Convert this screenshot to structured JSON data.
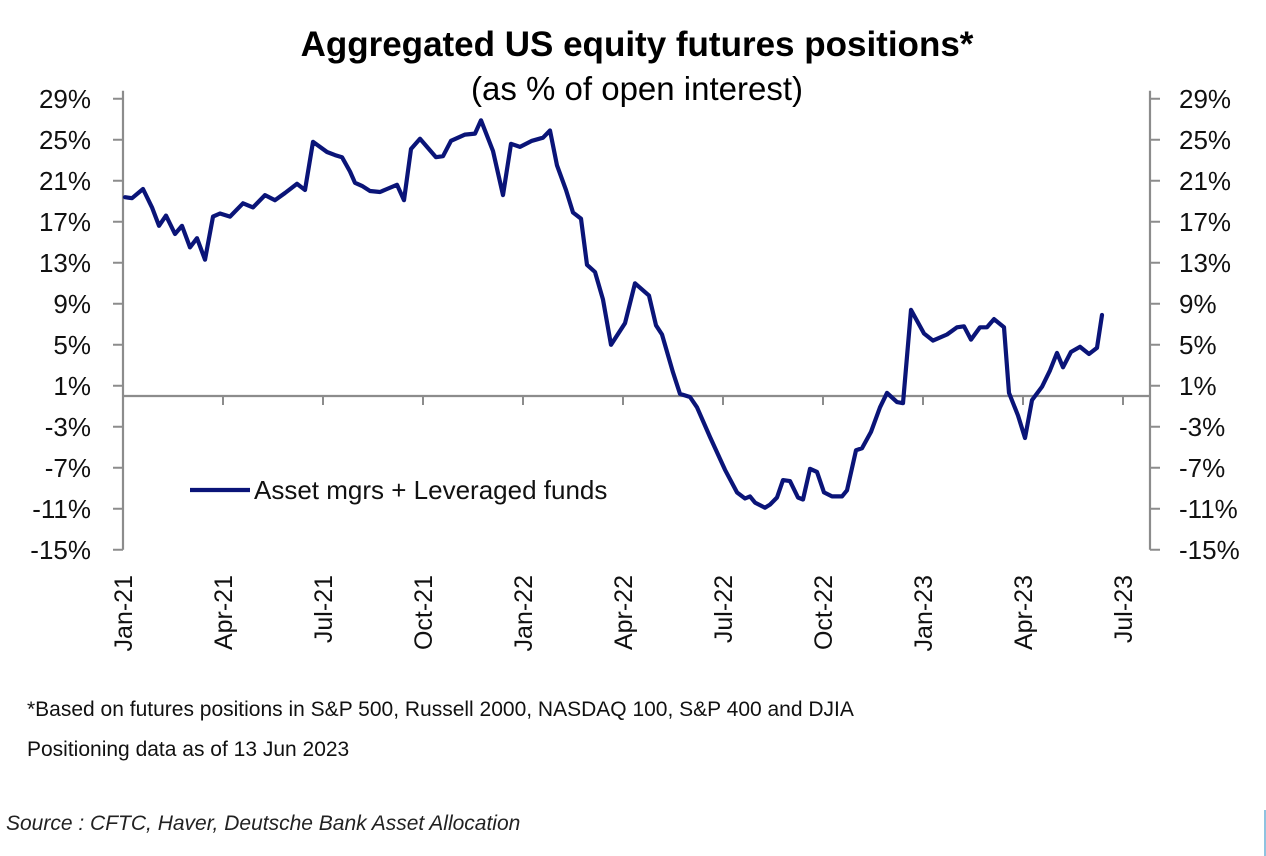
{
  "chart_data": {
    "type": "line",
    "title": "Aggregated US equity futures positions*",
    "subtitle": "(as % of open interest)",
    "xlabel": "",
    "ylabel": "",
    "x_unit": "months since Jan-2021",
    "x_ticks": [
      {
        "t": 0,
        "label": "Jan-21"
      },
      {
        "t": 3,
        "label": "Apr-21"
      },
      {
        "t": 6,
        "label": "Jul-21"
      },
      {
        "t": 9,
        "label": "Oct-21"
      },
      {
        "t": 12,
        "label": "Jan-22"
      },
      {
        "t": 15,
        "label": "Apr-22"
      },
      {
        "t": 18,
        "label": "Jul-22"
      },
      {
        "t": 21,
        "label": "Oct-22"
      },
      {
        "t": 24,
        "label": "Jan-23"
      },
      {
        "t": 27,
        "label": "Apr-23"
      },
      {
        "t": 30,
        "label": "Jul-23"
      }
    ],
    "xlim": [
      0,
      30.8
    ],
    "ylim": [
      -15,
      29
    ],
    "y_ticks": [
      {
        "v": 29,
        "label": "29%"
      },
      {
        "v": 25,
        "label": "25%"
      },
      {
        "v": 21,
        "label": "21%"
      },
      {
        "v": 17,
        "label": "17%"
      },
      {
        "v": 13,
        "label": "13%"
      },
      {
        "v": 9,
        "label": "9%"
      },
      {
        "v": 5,
        "label": "5%"
      },
      {
        "v": 1,
        "label": "1%"
      },
      {
        "v": -3,
        "label": "-3%"
      },
      {
        "v": -7,
        "label": "-7%"
      },
      {
        "v": -11,
        "label": "-11%"
      },
      {
        "v": -15,
        "label": "-15%"
      }
    ],
    "y_axes": "left and right (mirrored)",
    "grid": false,
    "zero_line": true,
    "legend_placement": "lower-left inside plot",
    "series": [
      {
        "name": "Asset mgrs + Leveraged funds",
        "color": "#0a1478",
        "points": [
          [
            0.06,
            19.4
          ],
          [
            0.27,
            19.3
          ],
          [
            0.6,
            20.2
          ],
          [
            0.87,
            18.4
          ],
          [
            1.08,
            16.6
          ],
          [
            1.29,
            17.6
          ],
          [
            1.56,
            15.8
          ],
          [
            1.77,
            16.6
          ],
          [
            2.01,
            14.5
          ],
          [
            2.22,
            15.4
          ],
          [
            2.46,
            13.3
          ],
          [
            2.7,
            17.5
          ],
          [
            2.91,
            17.8
          ],
          [
            3.21,
            17.5
          ],
          [
            3.6,
            18.8
          ],
          [
            3.9,
            18.4
          ],
          [
            4.26,
            19.6
          ],
          [
            4.56,
            19.1
          ],
          [
            4.86,
            19.8
          ],
          [
            5.22,
            20.7
          ],
          [
            5.46,
            20.1
          ],
          [
            5.7,
            24.8
          ],
          [
            6.12,
            23.8
          ],
          [
            6.36,
            23.5
          ],
          [
            6.57,
            23.3
          ],
          [
            6.81,
            21.9
          ],
          [
            6.96,
            20.8
          ],
          [
            7.17,
            20.5
          ],
          [
            7.41,
            20.0
          ],
          [
            7.71,
            19.9
          ],
          [
            7.92,
            20.2
          ],
          [
            8.22,
            20.6
          ],
          [
            8.43,
            19.1
          ],
          [
            8.64,
            24.1
          ],
          [
            8.91,
            25.1
          ],
          [
            9.39,
            23.3
          ],
          [
            9.6,
            23.4
          ],
          [
            9.84,
            24.9
          ],
          [
            10.26,
            25.5
          ],
          [
            10.56,
            25.6
          ],
          [
            10.74,
            26.9
          ],
          [
            11.1,
            23.9
          ],
          [
            11.4,
            19.6
          ],
          [
            11.64,
            24.6
          ],
          [
            11.91,
            24.3
          ],
          [
            12.27,
            24.9
          ],
          [
            12.6,
            25.2
          ],
          [
            12.81,
            25.9
          ],
          [
            13.02,
            22.5
          ],
          [
            13.29,
            20.1
          ],
          [
            13.5,
            17.9
          ],
          [
            13.74,
            17.3
          ],
          [
            13.92,
            12.8
          ],
          [
            14.16,
            12.1
          ],
          [
            14.4,
            9.4
          ],
          [
            14.64,
            5.0
          ],
          [
            15.06,
            7.1
          ],
          [
            15.36,
            11.0
          ],
          [
            15.78,
            9.8
          ],
          [
            15.99,
            6.9
          ],
          [
            16.17,
            6.0
          ],
          [
            16.5,
            2.3
          ],
          [
            16.71,
            0.2
          ],
          [
            17.01,
            -0.1
          ],
          [
            17.22,
            -1.1
          ],
          [
            17.61,
            -4.0
          ],
          [
            18.06,
            -7.2
          ],
          [
            18.42,
            -9.4
          ],
          [
            18.66,
            -10.0
          ],
          [
            18.81,
            -9.8
          ],
          [
            18.96,
            -10.4
          ],
          [
            19.26,
            -10.9
          ],
          [
            19.41,
            -10.6
          ],
          [
            19.62,
            -9.9
          ],
          [
            19.8,
            -8.2
          ],
          [
            20.01,
            -8.3
          ],
          [
            20.25,
            -9.9
          ],
          [
            20.4,
            -10.1
          ],
          [
            20.61,
            -7.1
          ],
          [
            20.82,
            -7.4
          ],
          [
            21.03,
            -9.4
          ],
          [
            21.27,
            -9.8
          ],
          [
            21.57,
            -9.8
          ],
          [
            21.72,
            -9.2
          ],
          [
            21.99,
            -5.3
          ],
          [
            22.17,
            -5.1
          ],
          [
            22.44,
            -3.5
          ],
          [
            22.71,
            -1.1
          ],
          [
            22.92,
            0.3
          ],
          [
            23.22,
            -0.6
          ],
          [
            23.4,
            -0.7
          ],
          [
            23.64,
            8.4
          ],
          [
            24.03,
            6.1
          ],
          [
            24.3,
            5.4
          ],
          [
            24.72,
            6.0
          ],
          [
            25.02,
            6.7
          ],
          [
            25.23,
            6.8
          ],
          [
            25.44,
            5.5
          ],
          [
            25.71,
            6.7
          ],
          [
            25.92,
            6.7
          ],
          [
            26.13,
            7.5
          ],
          [
            26.43,
            6.7
          ],
          [
            26.58,
            0.3
          ],
          [
            26.85,
            -1.9
          ],
          [
            27.06,
            -4.1
          ],
          [
            27.27,
            -0.4
          ],
          [
            27.57,
            0.9
          ],
          [
            27.81,
            2.5
          ],
          [
            28.02,
            4.2
          ],
          [
            28.2,
            2.8
          ],
          [
            28.44,
            4.3
          ],
          [
            28.71,
            4.8
          ],
          [
            28.98,
            4.1
          ],
          [
            29.22,
            4.7
          ],
          [
            29.37,
            7.9
          ]
        ]
      }
    ]
  },
  "footnotes": {
    "line1": "*Based on futures positions in S&P 500, Russell 2000, NASDAQ 100, S&P 400 and DJIA",
    "line2": "Positioning data as of 13 Jun 2023"
  },
  "source": "Source : CFTC, Haver, Deutsche Bank Asset Allocation",
  "colors": {
    "axis": "#8c8c8c",
    "series": "#0a1478",
    "edge_accent": "#8fc3e0"
  }
}
